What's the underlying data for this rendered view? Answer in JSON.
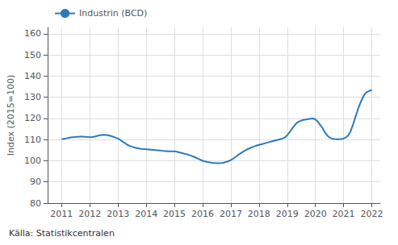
{
  "chart_data": {
    "type": "line",
    "ylabel": "Index (2015=100)",
    "caption": "Källa: Statistikcentralen",
    "legend": "upper left",
    "grid": true,
    "ylim": [
      80,
      163
    ],
    "yticks": [
      80,
      90,
      100,
      110,
      120,
      130,
      140,
      150,
      160
    ],
    "xlim": [
      2010.5,
      2022.3
    ],
    "xticks": [
      2011,
      2012,
      2013,
      2014,
      2015,
      2016,
      2017,
      2018,
      2019,
      2020,
      2021,
      2022
    ],
    "x": [
      2011.0,
      2011.083,
      2011.167,
      2011.25,
      2011.333,
      2011.417,
      2011.5,
      2011.583,
      2011.667,
      2011.75,
      2011.833,
      2011.917,
      2012.0,
      2012.083,
      2012.167,
      2012.25,
      2012.333,
      2012.417,
      2012.5,
      2012.583,
      2012.667,
      2012.75,
      2012.833,
      2012.917,
      2013.0,
      2013.083,
      2013.167,
      2013.25,
      2013.333,
      2013.417,
      2013.5,
      2013.583,
      2013.667,
      2013.75,
      2013.833,
      2013.917,
      2014.0,
      2014.083,
      2014.167,
      2014.25,
      2014.333,
      2014.417,
      2014.5,
      2014.583,
      2014.667,
      2014.75,
      2014.833,
      2014.917,
      2015.0,
      2015.083,
      2015.167,
      2015.25,
      2015.333,
      2015.417,
      2015.5,
      2015.583,
      2015.667,
      2015.75,
      2015.833,
      2015.917,
      2016.0,
      2016.083,
      2016.167,
      2016.25,
      2016.333,
      2016.417,
      2016.5,
      2016.583,
      2016.667,
      2016.75,
      2016.833,
      2016.917,
      2017.0,
      2017.083,
      2017.167,
      2017.25,
      2017.333,
      2017.417,
      2017.5,
      2017.583,
      2017.667,
      2017.75,
      2017.833,
      2017.917,
      2018.0,
      2018.083,
      2018.167,
      2018.25,
      2018.333,
      2018.417,
      2018.5,
      2018.583,
      2018.667,
      2018.75,
      2018.833,
      2018.917,
      2019.0,
      2019.083,
      2019.167,
      2019.25,
      2019.333,
      2019.417,
      2019.5,
      2019.583,
      2019.667,
      2019.75,
      2019.833,
      2019.917,
      2020.0,
      2020.083,
      2020.167,
      2020.25,
      2020.333,
      2020.417,
      2020.5,
      2020.583,
      2020.667,
      2020.75,
      2020.833,
      2020.917,
      2021.0,
      2021.083,
      2021.167,
      2021.25,
      2021.333,
      2021.417,
      2021.5,
      2021.583,
      2021.667,
      2021.75,
      2021.833,
      2021.917,
      2022.0
    ],
    "series": [
      {
        "name": "Industrin (BCD)",
        "color": "#2b7bba",
        "values": [
          110.2,
          110.4,
          110.6,
          110.8,
          111.0,
          111.1,
          111.2,
          111.3,
          111.4,
          111.4,
          111.3,
          111.2,
          111.1,
          111.2,
          111.4,
          111.7,
          112.0,
          112.2,
          112.3,
          112.2,
          112.0,
          111.7,
          111.3,
          110.9,
          110.5,
          109.8,
          109.0,
          108.3,
          107.5,
          107.0,
          106.6,
          106.3,
          106.0,
          105.8,
          105.6,
          105.5,
          105.4,
          105.3,
          105.2,
          105.1,
          105.0,
          104.9,
          104.8,
          104.7,
          104.6,
          104.5,
          104.5,
          104.5,
          104.5,
          104.3,
          104.0,
          103.7,
          103.4,
          103.1,
          102.8,
          102.4,
          102.0,
          101.5,
          101.0,
          100.5,
          100.0,
          99.7,
          99.4,
          99.2,
          99.0,
          98.9,
          98.8,
          98.8,
          98.9,
          99.1,
          99.4,
          99.8,
          100.3,
          101.0,
          101.8,
          102.6,
          103.4,
          104.1,
          104.8,
          105.4,
          105.9,
          106.4,
          106.8,
          107.2,
          107.5,
          107.8,
          108.1,
          108.4,
          108.7,
          109.0,
          109.3,
          109.6,
          109.9,
          110.2,
          110.5,
          111.0,
          112.0,
          113.5,
          115.0,
          116.5,
          117.8,
          118.5,
          119.0,
          119.3,
          119.5,
          119.7,
          119.9,
          120.0,
          119.5,
          118.5,
          117.0,
          115.5,
          113.5,
          112.0,
          111.0,
          110.5,
          110.3,
          110.2,
          110.2,
          110.3,
          110.5,
          111.0,
          112.0,
          114.0,
          117.0,
          120.5,
          124.0,
          127.0,
          129.5,
          131.5,
          132.5,
          133.0,
          133.5
        ]
      }
    ]
  }
}
